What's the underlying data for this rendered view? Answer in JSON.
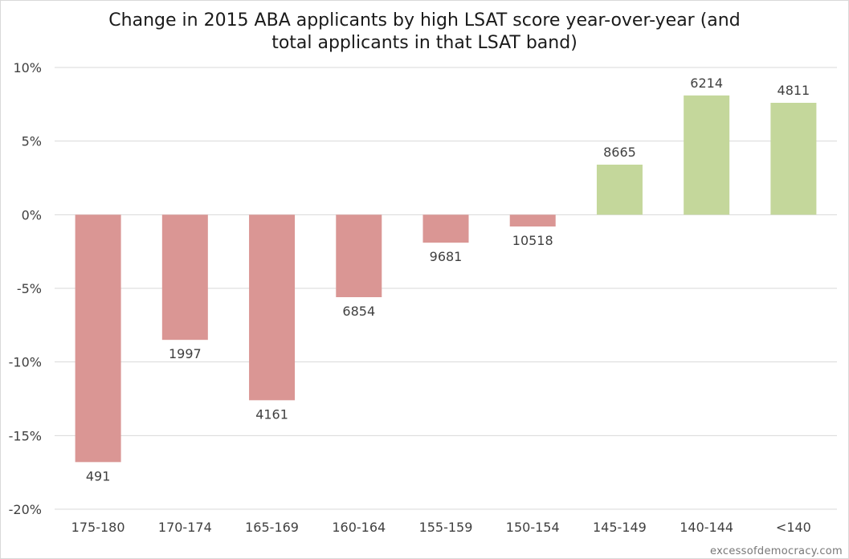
{
  "chart_data": {
    "type": "bar",
    "title_line1": "Change in 2015 ABA applicants by high LSAT score year-over-year (and",
    "title_line2": "total applicants in that LSAT band)",
    "categories": [
      "175-180",
      "170-174",
      "165-169",
      "160-164",
      "155-159",
      "150-154",
      "145-149",
      "140-144",
      "<140"
    ],
    "values": [
      -16.8,
      -8.5,
      -12.6,
      -5.6,
      -1.9,
      -0.8,
      3.4,
      8.1,
      7.6
    ],
    "data_labels": [
      "491",
      "1997",
      "4161",
      "6854",
      "9681",
      "10518",
      "8665",
      "6214",
      "4811"
    ],
    "ylim": [
      -20,
      10
    ],
    "yticks": [
      10,
      5,
      0,
      -5,
      -10,
      -15,
      -20
    ],
    "ytick_labels": [
      "10%",
      "5%",
      "0%",
      "-5%",
      "-10%",
      "-15%",
      "-20%"
    ],
    "grid": true,
    "colors": {
      "negative": "#da9694",
      "positive": "#c4d79b",
      "grid": "#d9d9d9",
      "text": "#404040"
    }
  },
  "watermark": "excessofdemocracy.com"
}
